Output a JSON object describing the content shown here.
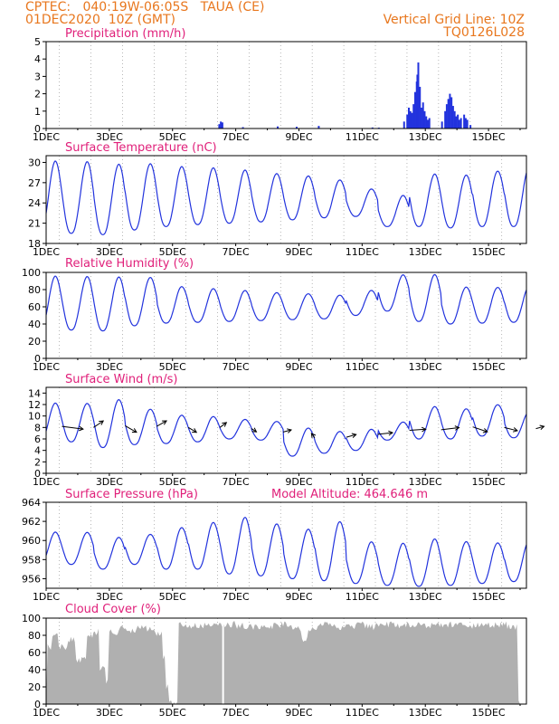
{
  "header": {
    "line1": "CPTEC:   040:19W-06:05S   TAUA (CE)",
    "line2": "01DEC2020  10Z (GMT)",
    "grid_note": "Vertical Grid Line: 10Z",
    "code": "TQ0126L028"
  },
  "colors": {
    "header": "#e8771e",
    "title": "#e0207a",
    "series": "#2233dd",
    "cloud": "#b0b0b0",
    "axis": "#000000"
  },
  "chart_data": [
    {
      "id": "precip",
      "type": "bar",
      "title": "Precipitation (mm/h)",
      "x_tick_labels": [
        "1DEC",
        "3DEC",
        "5DEC",
        "7DEC",
        "9DEC",
        "11DEC",
        "13DEC",
        "15DEC"
      ],
      "ylim": [
        0,
        5
      ],
      "yticks": [
        0,
        1,
        2,
        3,
        4,
        5
      ],
      "bars": [
        [
          5.45,
          0.25
        ],
        [
          5.5,
          0.4
        ],
        [
          5.55,
          0.35
        ],
        [
          6.2,
          0.08
        ],
        [
          7.3,
          0.12
        ],
        [
          7.9,
          0.1
        ],
        [
          8.6,
          0.15
        ],
        [
          10.3,
          0.06
        ],
        [
          10.5,
          0.05
        ],
        [
          11.3,
          0.4
        ],
        [
          11.4,
          0.8
        ],
        [
          11.45,
          1.2
        ],
        [
          11.5,
          1.0
        ],
        [
          11.55,
          0.9
        ],
        [
          11.6,
          1.4
        ],
        [
          11.65,
          2.1
        ],
        [
          11.7,
          2.7
        ],
        [
          11.72,
          3.1
        ],
        [
          11.75,
          3.8
        ],
        [
          11.8,
          2.4
        ],
        [
          11.85,
          1.2
        ],
        [
          11.9,
          1.5
        ],
        [
          11.95,
          1.0
        ],
        [
          12.0,
          0.7
        ],
        [
          12.05,
          0.5
        ],
        [
          12.1,
          0.6
        ],
        [
          12.5,
          0.4
        ],
        [
          12.6,
          1.0
        ],
        [
          12.65,
          1.4
        ],
        [
          12.7,
          1.7
        ],
        [
          12.75,
          2.0
        ],
        [
          12.8,
          1.8
        ],
        [
          12.85,
          1.3
        ],
        [
          12.9,
          1.0
        ],
        [
          12.95,
          0.7
        ],
        [
          13.0,
          0.8
        ],
        [
          13.05,
          0.5
        ],
        [
          13.1,
          0.6
        ],
        [
          13.2,
          0.8
        ],
        [
          13.25,
          0.6
        ],
        [
          13.3,
          0.5
        ],
        [
          13.4,
          0.2
        ]
      ]
    },
    {
      "id": "temp",
      "type": "line",
      "title": "Surface Temperature (nC)",
      "x_tick_labels": [
        "1DEC",
        "3DEC",
        "5DEC",
        "7DEC",
        "9DEC",
        "11DEC",
        "13DEC",
        "15DEC"
      ],
      "ylim": [
        18,
        31
      ],
      "yticks": [
        18,
        21,
        24,
        27,
        30
      ],
      "peaks": [
        {
          "day": 1,
          "min": 19.5,
          "max": 30.6
        },
        {
          "day": 2,
          "min": 19.3,
          "max": 30.3
        },
        {
          "day": 3,
          "min": 20.0,
          "max": 30.3
        },
        {
          "day": 4,
          "min": 20.5,
          "max": 29.7
        },
        {
          "day": 5,
          "min": 20.8,
          "max": 29.4
        },
        {
          "day": 6,
          "min": 21.0,
          "max": 29.1
        },
        {
          "day": 7,
          "min": 21.2,
          "max": 28.7
        },
        {
          "day": 8,
          "min": 21.5,
          "max": 28.4
        },
        {
          "day": 9,
          "min": 21.8,
          "max": 27.7
        },
        {
          "day": 10,
          "min": 22.0,
          "max": 26.2
        },
        {
          "day": 11,
          "min": 20.5,
          "max": 25.2
        },
        {
          "day": 12,
          "min": 20.5,
          "max": 28.5
        },
        {
          "day": 13,
          "min": 20.3,
          "max": 28.5
        },
        {
          "day": 14,
          "min": 20.5,
          "max": 29.2
        },
        {
          "day": 15,
          "min": 20.5,
          "max": 29.8
        }
      ]
    },
    {
      "id": "rh",
      "type": "line",
      "title": "Relative Humidity (%)",
      "x_tick_labels": [
        "1DEC",
        "3DEC",
        "5DEC",
        "7DEC",
        "9DEC",
        "11DEC",
        "13DEC",
        "15DEC"
      ],
      "ylim": [
        0,
        100
      ],
      "yticks": [
        0,
        20,
        40,
        60,
        80,
        100
      ],
      "peaks": [
        {
          "day": 1,
          "min": 33,
          "max": 98
        },
        {
          "day": 2,
          "min": 32,
          "max": 98
        },
        {
          "day": 3,
          "min": 38,
          "max": 97
        },
        {
          "day": 4,
          "min": 41,
          "max": 85
        },
        {
          "day": 5,
          "min": 42,
          "max": 82
        },
        {
          "day": 6,
          "min": 43,
          "max": 80
        },
        {
          "day": 7,
          "min": 44,
          "max": 78
        },
        {
          "day": 8,
          "min": 45,
          "max": 77
        },
        {
          "day": 9,
          "min": 46,
          "max": 75
        },
        {
          "day": 10,
          "min": 50,
          "max": 80
        },
        {
          "day": 11,
          "min": 55,
          "max": 98
        },
        {
          "day": 12,
          "min": 43,
          "max": 99
        },
        {
          "day": 13,
          "min": 40,
          "max": 85
        },
        {
          "day": 14,
          "min": 41,
          "max": 85
        },
        {
          "day": 15,
          "min": 42,
          "max": 86
        }
      ]
    },
    {
      "id": "wind",
      "type": "line",
      "title": "Surface Wind (m/s)",
      "x_tick_labels": [
        "1DEC",
        "3DEC",
        "5DEC",
        "7DEC",
        "9DEC",
        "11DEC",
        "13DEC",
        "15DEC"
      ],
      "ylim": [
        0,
        15
      ],
      "yticks": [
        0,
        2,
        4,
        6,
        8,
        10,
        12,
        14
      ],
      "peaks": [
        {
          "day": 1,
          "min": 5.5,
          "max": 12.5
        },
        {
          "day": 2,
          "min": 4.5,
          "max": 13.3
        },
        {
          "day": 3,
          "min": 5.0,
          "max": 11.5
        },
        {
          "day": 4,
          "min": 5.2,
          "max": 10.3
        },
        {
          "day": 5,
          "min": 5.5,
          "max": 10.0
        },
        {
          "day": 6,
          "min": 6.0,
          "max": 9.5
        },
        {
          "day": 7,
          "min": 5.8,
          "max": 9.2
        },
        {
          "day": 8,
          "min": 3.0,
          "max": 8.2
        },
        {
          "day": 9,
          "min": 3.5,
          "max": 7.5
        },
        {
          "day": 10,
          "min": 4.0,
          "max": 7.8
        },
        {
          "day": 11,
          "min": 5.8,
          "max": 9.0
        },
        {
          "day": 12,
          "min": 6.0,
          "max": 11.8
        },
        {
          "day": 13,
          "min": 6.0,
          "max": 11.5
        },
        {
          "day": 14,
          "min": 6.5,
          "max": 12.3
        },
        {
          "day": 15,
          "min": 6.2,
          "max": 11.0
        }
      ],
      "arrows": [
        [
          0.5,
          8.2,
          1.3,
          -0.5
        ],
        [
          1.5,
          8.0,
          0.6,
          1.2
        ],
        [
          2.5,
          8.3,
          0.7,
          -1.2
        ],
        [
          3.5,
          8.2,
          0.6,
          1.0
        ],
        [
          4.5,
          8.0,
          0.5,
          -0.9
        ],
        [
          5.5,
          8.0,
          0.4,
          0.9
        ],
        [
          6.5,
          7.8,
          0.3,
          -0.6
        ],
        [
          7.5,
          7.2,
          0.5,
          0.4
        ],
        [
          8.5,
          6.2,
          -0.2,
          0.8
        ],
        [
          9.5,
          6.3,
          0.6,
          0.5
        ],
        [
          10.5,
          6.8,
          0.9,
          0.3
        ],
        [
          11.5,
          7.5,
          1.0,
          0.2
        ],
        [
          12.5,
          7.6,
          1.1,
          0.4
        ],
        [
          13.5,
          8.1,
          0.9,
          -0.9
        ],
        [
          14.5,
          8.0,
          0.8,
          -0.6
        ],
        [
          15.5,
          7.8,
          0.5,
          0.4
        ]
      ]
    },
    {
      "id": "pres",
      "type": "line",
      "title": "Surface Pressure (hPa)",
      "subtitle": "Model Altitude: 464.646 m",
      "x_tick_labels": [
        "1DEC",
        "3DEC",
        "5DEC",
        "7DEC",
        "9DEC",
        "11DEC",
        "13DEC",
        "15DEC"
      ],
      "ylim": [
        955,
        964
      ],
      "yticks": [
        956,
        958,
        960,
        962,
        964
      ],
      "peaks": [
        {
          "day": 1,
          "min": 957.5,
          "max": 961.0
        },
        {
          "day": 2,
          "min": 957.0,
          "max": 960.5
        },
        {
          "day": 3,
          "min": 957.5,
          "max": 960.8
        },
        {
          "day": 4,
          "min": 957.0,
          "max": 961.5
        },
        {
          "day": 5,
          "min": 957.0,
          "max": 962.0
        },
        {
          "day": 6,
          "min": 956.5,
          "max": 962.6
        },
        {
          "day": 7,
          "min": 956.3,
          "max": 962.0
        },
        {
          "day": 8,
          "min": 956.0,
          "max": 961.5
        },
        {
          "day": 9,
          "min": 955.8,
          "max": 962.3
        },
        {
          "day": 10,
          "min": 955.5,
          "max": 960.0
        },
        {
          "day": 11,
          "min": 955.3,
          "max": 959.8
        },
        {
          "day": 12,
          "min": 955.2,
          "max": 960.3
        },
        {
          "day": 13,
          "min": 955.3,
          "max": 960.1
        },
        {
          "day": 14,
          "min": 955.5,
          "max": 960.0
        },
        {
          "day": 15,
          "min": 955.7,
          "max": 960.2
        }
      ]
    },
    {
      "id": "cloud",
      "type": "area",
      "title": "Cloud Cover (%)",
      "x_tick_labels": [
        "1DEC",
        "3DEC",
        "5DEC",
        "7DEC",
        "9DEC",
        "11DEC",
        "13DEC",
        "15DEC"
      ],
      "ylim": [
        0,
        100
      ],
      "yticks": [
        0,
        20,
        40,
        60,
        80,
        100
      ],
      "segments": [
        [
          0,
          0,
          5
        ],
        [
          0.05,
          0,
          70
        ],
        [
          0.2,
          0,
          85
        ],
        [
          0.4,
          0,
          70
        ],
        [
          0.7,
          0,
          80
        ],
        [
          0.95,
          0,
          55
        ],
        [
          1.3,
          0,
          82
        ],
        [
          1.5,
          0,
          88
        ],
        [
          1.7,
          0,
          45
        ],
        [
          1.9,
          0,
          30
        ],
        [
          2.0,
          0,
          88
        ],
        [
          2.3,
          0,
          92
        ],
        [
          2.6,
          0,
          88
        ],
        [
          2.9,
          0,
          92
        ],
        [
          3.2,
          0,
          90
        ],
        [
          3.5,
          0,
          85
        ],
        [
          3.7,
          0,
          60
        ],
        [
          3.8,
          0,
          25
        ],
        [
          3.9,
          0,
          10
        ],
        [
          4.0,
          0,
          3
        ],
        [
          4.1,
          0,
          5
        ],
        [
          4.2,
          0,
          96
        ],
        [
          4.5,
          0,
          95
        ],
        [
          4.8,
          0,
          96
        ],
        [
          5.1,
          0,
          97
        ],
        [
          5.4,
          0,
          96
        ],
        [
          5.7,
          0,
          97
        ],
        [
          6.0,
          0,
          95
        ],
        [
          6.3,
          0,
          94
        ],
        [
          6.6,
          0,
          95
        ],
        [
          6.9,
          0,
          95
        ],
        [
          7.2,
          0,
          96
        ],
        [
          7.5,
          0,
          97
        ],
        [
          7.8,
          0,
          92
        ],
        [
          8.1,
          0,
          80
        ],
        [
          8.3,
          0,
          92
        ],
        [
          8.6,
          0,
          97
        ],
        [
          8.9,
          0,
          96
        ],
        [
          9.2,
          0,
          93
        ],
        [
          9.5,
          0,
          95
        ],
        [
          9.8,
          0,
          97
        ],
        [
          10.1,
          0,
          94
        ],
        [
          10.4,
          0,
          96
        ],
        [
          10.7,
          0,
          97
        ],
        [
          11.0,
          0,
          95
        ],
        [
          11.3,
          0,
          96
        ],
        [
          11.6,
          0,
          97
        ],
        [
          11.9,
          0,
          96
        ],
        [
          12.2,
          0,
          97
        ],
        [
          12.5,
          0,
          96
        ],
        [
          12.8,
          0,
          97
        ],
        [
          13.1,
          0,
          96
        ],
        [
          13.4,
          0,
          95
        ],
        [
          13.7,
          0,
          97
        ],
        [
          14.0,
          0,
          96
        ],
        [
          14.3,
          0,
          97
        ],
        [
          14.6,
          0,
          95
        ],
        [
          14.8,
          0,
          94
        ],
        [
          14.95,
          0,
          10
        ],
        [
          15.0,
          0,
          5
        ]
      ]
    }
  ]
}
